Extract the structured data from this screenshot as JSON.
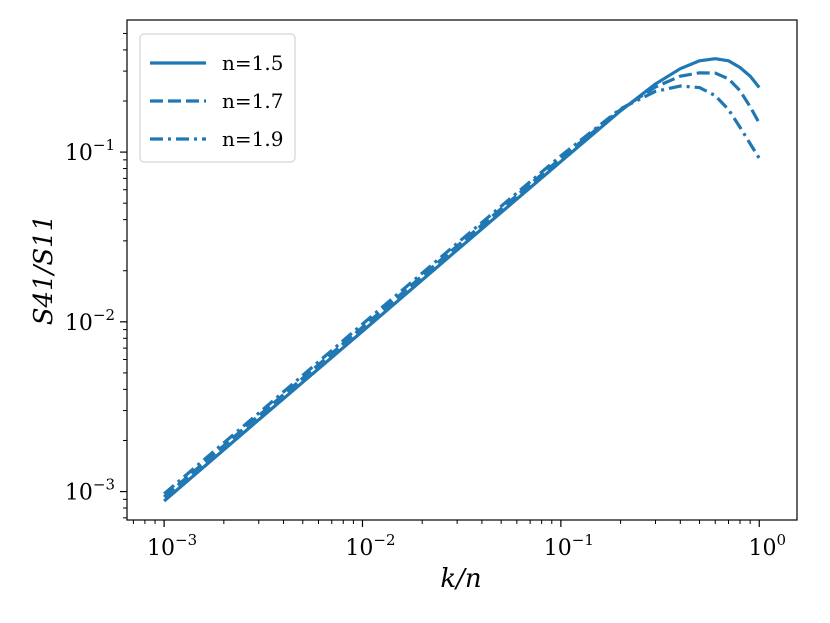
{
  "chart_data": {
    "type": "line",
    "title": "",
    "xlabel": "k/n",
    "ylabel": "S41/S11",
    "xscale": "log",
    "yscale": "log",
    "xlim": [
      0.00065,
      1.55
    ],
    "ylim": [
      0.00068,
      0.6
    ],
    "grid": false,
    "legend_position": "top-left",
    "line_color": "#1f77b4",
    "x_tick_labels": [
      {
        "base": "10",
        "exp": "−3",
        "value": 0.001
      },
      {
        "base": "10",
        "exp": "−2",
        "value": 0.01
      },
      {
        "base": "10",
        "exp": "−1",
        "value": 0.1
      },
      {
        "base": "10",
        "exp": "0",
        "value": 1
      }
    ],
    "y_tick_labels": [
      {
        "base": "10",
        "exp": "−3",
        "value": 0.001
      },
      {
        "base": "10",
        "exp": "−2",
        "value": 0.01
      },
      {
        "base": "10",
        "exp": "−1",
        "value": 0.1
      }
    ],
    "series": [
      {
        "name": "n=1.5",
        "dash": "solid",
        "x": [
          0.001,
          0.003,
          0.01,
          0.03,
          0.1,
          0.2,
          0.3,
          0.4,
          0.5,
          0.6,
          0.7,
          0.8,
          0.9,
          1.0
        ],
        "y": [
          0.00088,
          0.00265,
          0.0088,
          0.0265,
          0.088,
          0.175,
          0.252,
          0.31,
          0.345,
          0.355,
          0.345,
          0.315,
          0.28,
          0.24
        ]
      },
      {
        "name": "n=1.7",
        "dash": "dashed",
        "x": [
          0.001,
          0.003,
          0.01,
          0.03,
          0.1,
          0.2,
          0.3,
          0.4,
          0.5,
          0.6,
          0.7,
          0.8,
          0.9,
          1.0
        ],
        "y": [
          0.00093,
          0.0028,
          0.0093,
          0.028,
          0.092,
          0.178,
          0.242,
          0.28,
          0.293,
          0.292,
          0.27,
          0.23,
          0.185,
          0.148
        ]
      },
      {
        "name": "n=1.9",
        "dash": "dashdot",
        "x": [
          0.001,
          0.003,
          0.01,
          0.03,
          0.1,
          0.2,
          0.3,
          0.4,
          0.5,
          0.6,
          0.7,
          0.8,
          0.9,
          1.0
        ],
        "y": [
          0.00097,
          0.0029,
          0.0097,
          0.029,
          0.095,
          0.18,
          0.228,
          0.245,
          0.24,
          0.215,
          0.178,
          0.14,
          0.112,
          0.092
        ]
      }
    ]
  }
}
